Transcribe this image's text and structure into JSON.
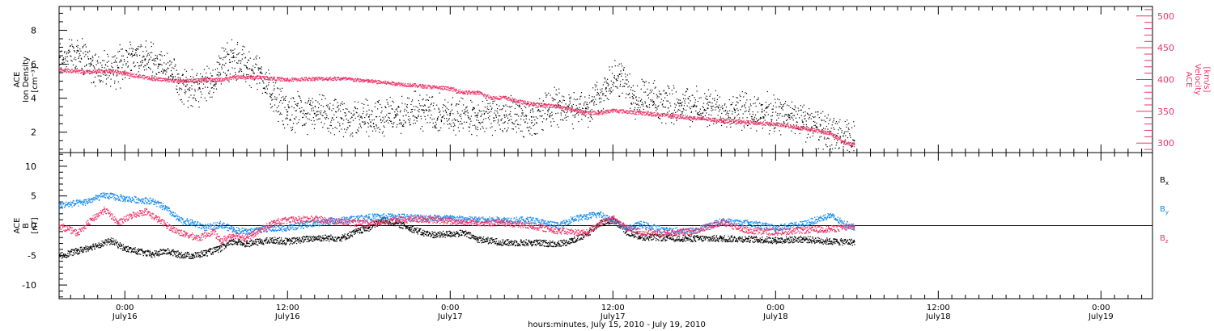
{
  "chart_data": {
    "type": "scatter",
    "xlabel": "hours:minutes, July 15, 2010 - July 19, 2010",
    "x_ticks": [
      {
        "time": "0:00",
        "date": "July16",
        "hours": 0
      },
      {
        "time": "12:00",
        "date": "July16",
        "hours": 12
      },
      {
        "time": "0:00",
        "date": "July17",
        "hours": 24
      },
      {
        "time": "12:00",
        "date": "July17",
        "hours": 36
      },
      {
        "time": "0:00",
        "date": "July18",
        "hours": 48
      },
      {
        "time": "12:00",
        "date": "July18",
        "hours": 60
      },
      {
        "time": "0:00",
        "date": "July19",
        "hours": 72
      }
    ],
    "xlim_hours": [
      -4.85,
      75.8
    ],
    "data_end_hours": 53.8,
    "panels": [
      {
        "ylabel_lines": [
          "ACE",
          "Ion Density",
          "[cm⁻³]"
        ],
        "ylim": [
          0.8,
          9.4
        ],
        "yticks": [
          2,
          4,
          6,
          8
        ],
        "y2label_lines": [
          "ACE",
          "Velocity",
          "[km/s]"
        ],
        "y2lim": [
          285,
          515
        ],
        "y2ticks": [
          300,
          350,
          400,
          450,
          500
        ],
        "series": [
          {
            "axis": "left",
            "color": "#000000",
            "points": [
              [
                -4.8,
                6.4
              ],
              [
                -3.5,
                6.8
              ],
              [
                -2.5,
                6.0
              ],
              [
                -1.5,
                5.6
              ],
              [
                -0.5,
                5.8
              ],
              [
                0.5,
                6.6
              ],
              [
                1.5,
                6.3
              ],
              [
                2.5,
                6.0
              ],
              [
                3.5,
                5.4
              ],
              [
                4.5,
                4.7
              ],
              [
                5.5,
                4.6
              ],
              [
                6.5,
                5.0
              ],
              [
                7.0,
                6.0
              ],
              [
                8.0,
                6.4
              ],
              [
                9.0,
                5.8
              ],
              [
                10.0,
                5.5
              ],
              [
                10.8,
                4.2
              ],
              [
                12.0,
                3.2
              ],
              [
                14.0,
                3.1
              ],
              [
                16.0,
                2.8
              ],
              [
                18.0,
                2.9
              ],
              [
                20.0,
                3.0
              ],
              [
                22.0,
                3.3
              ],
              [
                24.0,
                3.1
              ],
              [
                26.0,
                3.0
              ],
              [
                28.0,
                3.0
              ],
              [
                30.0,
                2.9
              ],
              [
                32.0,
                3.6
              ],
              [
                34.0,
                3.4
              ],
              [
                35.5,
                4.6
              ],
              [
                36.5,
                5.4
              ],
              [
                37.5,
                4.0
              ],
              [
                39.0,
                3.8
              ],
              [
                41.0,
                3.7
              ],
              [
                43.0,
                3.4
              ],
              [
                45.0,
                3.3
              ],
              [
                47.0,
                3.2
              ],
              [
                49.0,
                3.0
              ],
              [
                50.0,
                2.6
              ],
              [
                51.0,
                2.3
              ],
              [
                52.5,
                1.8
              ],
              [
                53.8,
                1.5
              ]
            ]
          },
          {
            "axis": "right",
            "color": "#ee3366",
            "points": [
              [
                -4.8,
                416
              ],
              [
                -3.0,
                412
              ],
              [
                -1.0,
                414
              ],
              [
                0.0,
                410
              ],
              [
                2.0,
                402
              ],
              [
                4.0,
                398
              ],
              [
                6.0,
                400
              ],
              [
                7.0,
                400
              ],
              [
                8.0,
                404
              ],
              [
                10.0,
                404
              ],
              [
                11.0,
                402
              ],
              [
                12.0,
                400
              ],
              [
                14.0,
                402
              ],
              [
                16.0,
                402
              ],
              [
                18.0,
                398
              ],
              [
                20.0,
                394
              ],
              [
                22.0,
                390
              ],
              [
                24.0,
                386
              ],
              [
                25.0,
                380
              ],
              [
                26.0,
                380
              ],
              [
                27.0,
                372
              ],
              [
                28.0,
                372
              ],
              [
                29.0,
                366
              ],
              [
                30.0,
                362
              ],
              [
                32.0,
                358
              ],
              [
                34.0,
                348
              ],
              [
                35.0,
                348
              ],
              [
                36.0,
                352
              ],
              [
                38.0,
                348
              ],
              [
                40.0,
                344
              ],
              [
                42.0,
                340
              ],
              [
                44.0,
                336
              ],
              [
                46.0,
                333
              ],
              [
                48.0,
                330
              ],
              [
                50.0,
                324
              ],
              [
                52.0,
                316
              ],
              [
                53.0,
                302
              ],
              [
                53.8,
                298
              ]
            ]
          }
        ]
      },
      {
        "ylabel_lines": [
          "ACE",
          "B",
          "[nT]"
        ],
        "ylim": [
          -12.3,
          12.3
        ],
        "yticks": [
          -10,
          -5,
          0,
          5,
          10
        ],
        "legend": [
          {
            "name": "B",
            "sub": "x",
            "color": "#000000"
          },
          {
            "name": "B",
            "sub": "y",
            "color": "#1188ee"
          },
          {
            "name": "B",
            "sub": "z",
            "color": "#ee3366"
          }
        ],
        "series": [
          {
            "name": "Bx",
            "color": "#000000",
            "points": [
              [
                -4.8,
                -5
              ],
              [
                -3.5,
                -4.2
              ],
              [
                -2.5,
                -3.5
              ],
              [
                -1.0,
                -2.5
              ],
              [
                0.0,
                -3.8
              ],
              [
                1.0,
                -4.3
              ],
              [
                2.0,
                -4.8
              ],
              [
                3.0,
                -4.2
              ],
              [
                4.0,
                -4.8
              ],
              [
                5.0,
                -5
              ],
              [
                6.0,
                -4.5
              ],
              [
                7.0,
                -3.8
              ],
              [
                8.0,
                -2.6
              ],
              [
                9.0,
                -3.0
              ],
              [
                10.0,
                -2.6
              ],
              [
                11.0,
                -2.4
              ],
              [
                12.0,
                -2.6
              ],
              [
                14.0,
                -2.0
              ],
              [
                16.0,
                -2.0
              ],
              [
                17.0,
                -1.0
              ],
              [
                18.0,
                -0.3
              ],
              [
                19.0,
                1.0
              ],
              [
                20.0,
                0.5
              ],
              [
                21.0,
                -0.3
              ],
              [
                22.0,
                -1.2
              ],
              [
                23.0,
                -1.5
              ],
              [
                24.0,
                -1.3
              ],
              [
                25.0,
                -1.2
              ],
              [
                26.0,
                -2.2
              ],
              [
                28.0,
                -2.8
              ],
              [
                30.0,
                -2.8
              ],
              [
                32.0,
                -3.0
              ],
              [
                33.0,
                -2.4
              ],
              [
                34.0,
                -1.5
              ],
              [
                35.0,
                0.5
              ],
              [
                36.0,
                1.0
              ],
              [
                37.0,
                -1.0
              ],
              [
                38.0,
                -1.8
              ],
              [
                40.0,
                -2.0
              ],
              [
                42.0,
                -2.1
              ],
              [
                44.0,
                -2.1
              ],
              [
                46.0,
                -2.2
              ],
              [
                48.0,
                -2.4
              ],
              [
                50.0,
                -2.2
              ],
              [
                52.0,
                -2.6
              ],
              [
                53.8,
                -2.7
              ]
            ]
          },
          {
            "name": "By",
            "color": "#1188ee",
            "points": [
              [
                -4.8,
                3.5
              ],
              [
                -3.0,
                4.0
              ],
              [
                -1.5,
                5.2
              ],
              [
                0.0,
                4.6
              ],
              [
                2.0,
                4.2
              ],
              [
                3.0,
                3.0
              ],
              [
                4.0,
                1.0
              ],
              [
                5.0,
                0.5
              ],
              [
                6.0,
                -0.3
              ],
              [
                7.0,
                0.3
              ],
              [
                8.0,
                -0.6
              ],
              [
                9.0,
                -1.0
              ],
              [
                10.0,
                -0.5
              ],
              [
                12.0,
                -0.3
              ],
              [
                14.0,
                0.5
              ],
              [
                16.0,
                1.0
              ],
              [
                18.0,
                1.5
              ],
              [
                20.0,
                1.6
              ],
              [
                22.0,
                1.4
              ],
              [
                24.0,
                1.3
              ],
              [
                26.0,
                1.0
              ],
              [
                28.0,
                1.0
              ],
              [
                30.0,
                1.0
              ],
              [
                32.0,
                0.0
              ],
              [
                33.0,
                1.2
              ],
              [
                34.0,
                1.6
              ],
              [
                35.0,
                2.0
              ],
              [
                36.0,
                1.0
              ],
              [
                37.0,
                -0.5
              ],
              [
                38.0,
                0.3
              ],
              [
                40.0,
                -0.8
              ],
              [
                42.0,
                -0.8
              ],
              [
                44.0,
                0.8
              ],
              [
                46.0,
                0.5
              ],
              [
                48.0,
                -0.3
              ],
              [
                50.0,
                0.3
              ],
              [
                52.0,
                1.8
              ],
              [
                53.0,
                0.4
              ],
              [
                53.8,
                -0.2
              ]
            ]
          },
          {
            "name": "Bz",
            "color": "#ee3366",
            "points": [
              [
                -4.8,
                0.0
              ],
              [
                -3.5,
                -1.2
              ],
              [
                -2.5,
                1.0
              ],
              [
                -1.5,
                2.8
              ],
              [
                -0.5,
                0.5
              ],
              [
                0.5,
                1.8
              ],
              [
                1.5,
                2.5
              ],
              [
                2.5,
                1.0
              ],
              [
                3.5,
                -0.5
              ],
              [
                4.5,
                -1.5
              ],
              [
                5.5,
                -2.0
              ],
              [
                6.5,
                -0.8
              ],
              [
                7.0,
                -2.5
              ],
              [
                8.0,
                -1.5
              ],
              [
                9.0,
                -2.0
              ],
              [
                10.0,
                -0.6
              ],
              [
                11.0,
                0.6
              ],
              [
                12.0,
                1.0
              ],
              [
                14.0,
                1.2
              ],
              [
                16.0,
                0.7
              ],
              [
                18.0,
                0.3
              ],
              [
                20.0,
                1.0
              ],
              [
                22.0,
                1.2
              ],
              [
                24.0,
                0.8
              ],
              [
                26.0,
                0.6
              ],
              [
                28.0,
                0.5
              ],
              [
                30.0,
                0.0
              ],
              [
                32.0,
                -0.8
              ],
              [
                34.0,
                -1.2
              ],
              [
                35.0,
                0.5
              ],
              [
                36.0,
                1.2
              ],
              [
                37.0,
                -0.3
              ],
              [
                38.0,
                -1.0
              ],
              [
                40.0,
                -1.2
              ],
              [
                42.0,
                -0.8
              ],
              [
                44.0,
                0.6
              ],
              [
                46.0,
                -0.8
              ],
              [
                48.0,
                -1.0
              ],
              [
                50.0,
                -0.7
              ],
              [
                52.0,
                -0.5
              ],
              [
                53.8,
                -0.1
              ]
            ]
          }
        ]
      }
    ]
  }
}
